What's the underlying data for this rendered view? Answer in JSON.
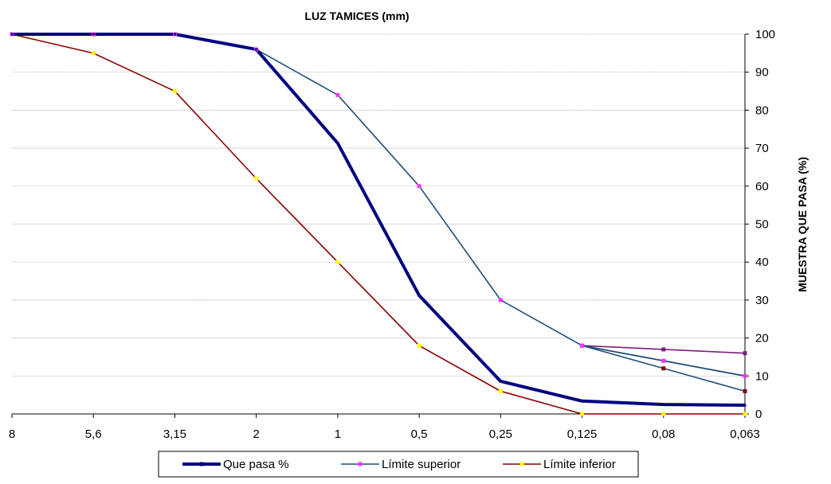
{
  "chart_data": {
    "type": "line",
    "title": "LUZ TAMICES (mm)",
    "xlabel": "",
    "ylabel": "MUESTRA QUE PASA  (%)",
    "categories": [
      "8",
      "5,6",
      "3,15",
      "2",
      "1",
      "0,5",
      "0,25",
      "0,125",
      "0,08",
      "0,063"
    ],
    "ylim": [
      0,
      100
    ],
    "yticks": [
      0,
      10,
      20,
      30,
      40,
      50,
      60,
      70,
      80,
      90,
      100
    ],
    "grid": true,
    "legend": "bottom",
    "series": [
      {
        "name": "Que pasa %",
        "color": "#000080",
        "marker_color": "#000080",
        "values": [
          100,
          100,
          100,
          96,
          71.3,
          31.2,
          8.6,
          3.4,
          2.5,
          2.3
        ]
      },
      {
        "name": "Límite superior",
        "color": "#1f4e79",
        "marker_color": "#ff33ff",
        "values": [
          100,
          100,
          100,
          96,
          84,
          60,
          30,
          18,
          14,
          10
        ]
      },
      {
        "name": "Límite inferior",
        "color": "#8b0000",
        "marker_color": "#ffff00",
        "values": [
          100,
          95,
          85,
          62,
          40,
          18,
          6,
          0,
          0,
          0
        ]
      }
    ],
    "extra_series": [
      {
        "color": "#7b1f7b",
        "marker_color": "#7b1f7b",
        "start_index": 7,
        "values": [
          18,
          17,
          16
        ]
      },
      {
        "color": "#1f4e79",
        "marker_color": "#8b0000",
        "start_index": 7,
        "values": [
          18,
          12,
          6
        ]
      },
      {
        "color": "#1f4e79",
        "marker_color": "#33ccff",
        "start_index": 7,
        "values": [
          18,
          14,
          10
        ]
      }
    ]
  }
}
